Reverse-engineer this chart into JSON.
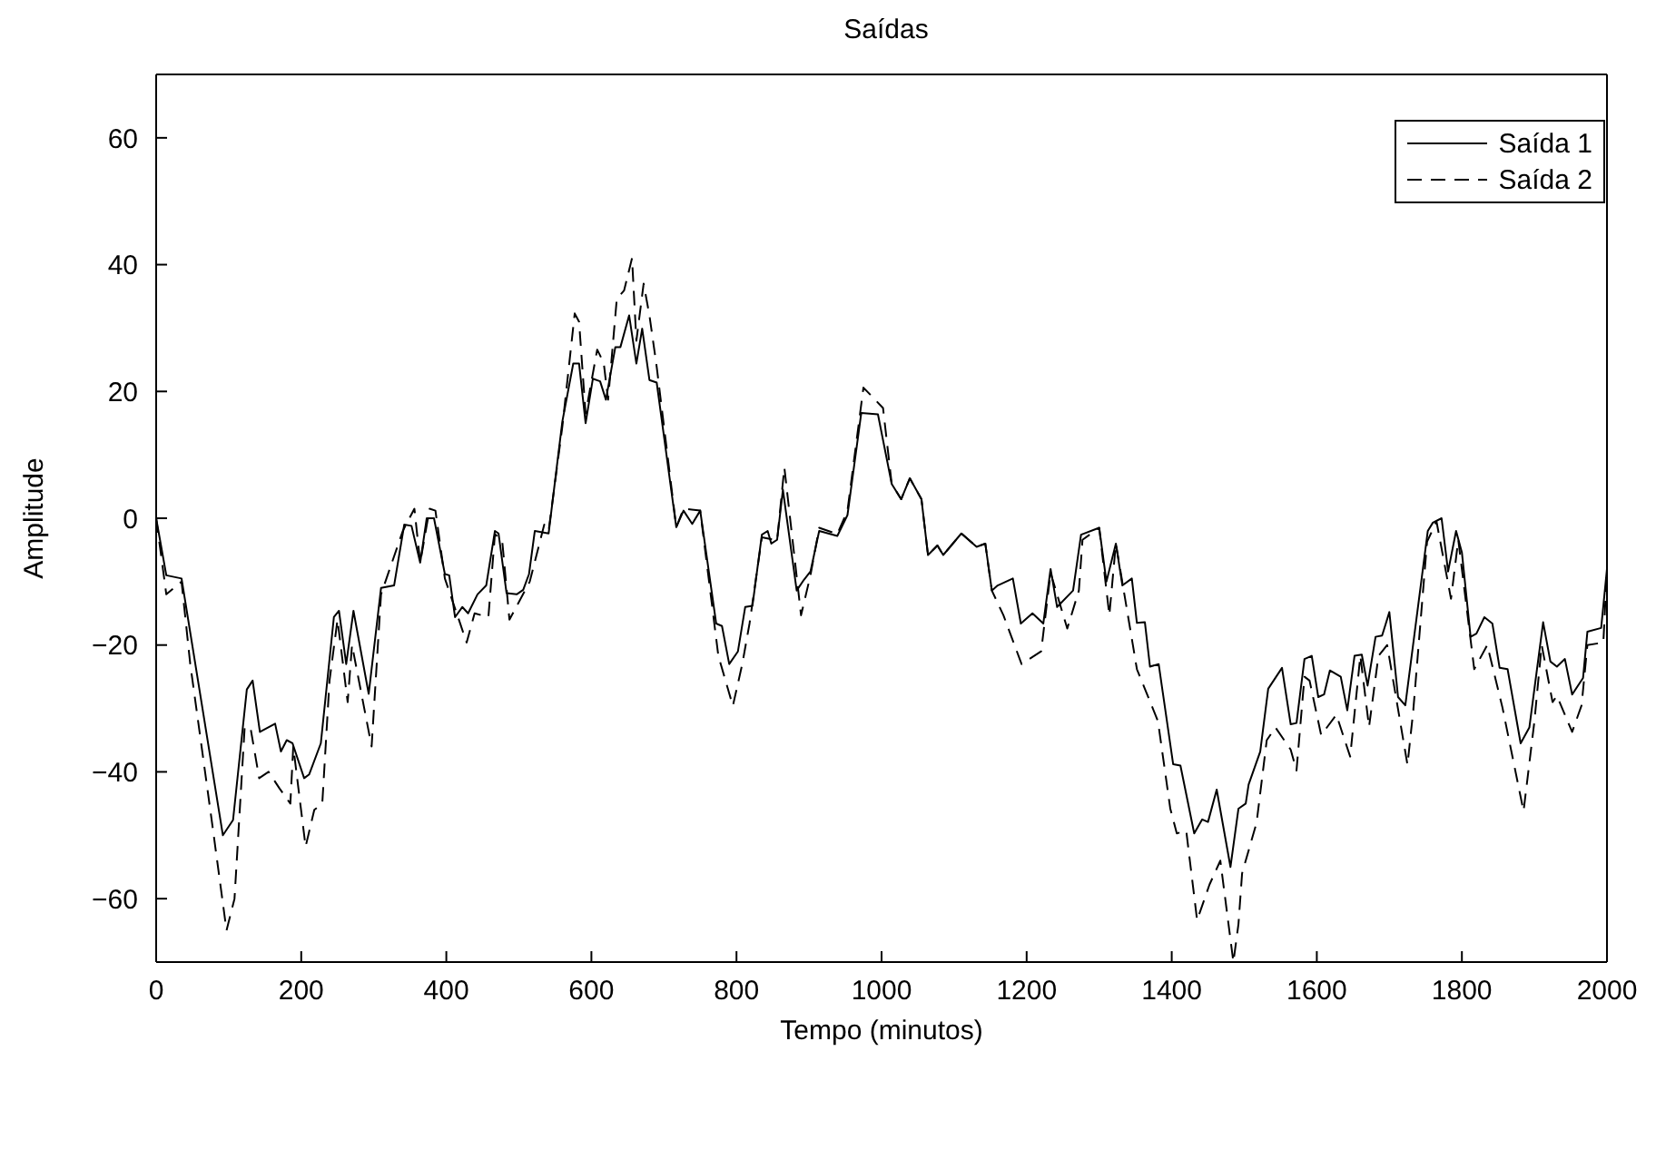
{
  "chart_data": {
    "type": "line",
    "title": "Saídas",
    "xlabel": "Tempo (minutos)",
    "ylabel": "Amplitude",
    "xlim": [
      0,
      2000
    ],
    "ylim": [
      -70,
      70
    ],
    "xticks": [
      0,
      200,
      400,
      600,
      800,
      1000,
      1200,
      1400,
      1600,
      1800,
      2000
    ],
    "yticks": [
      -60,
      -40,
      -20,
      0,
      20,
      40,
      60
    ],
    "grid": false,
    "legend": "top right",
    "marker": "none",
    "series": [
      {
        "name": "Saída 1",
        "color": "#000000",
        "line_style": "solid",
        "x": [
          0,
          14,
          35,
          92,
          106,
          125,
          133,
          143,
          164,
          172,
          180,
          188,
          204,
          211,
          227,
          245,
          252,
          262,
          272,
          293,
          310,
          328,
          342,
          352,
          364,
          373,
          383,
          398,
          404,
          412,
          422,
          430,
          443,
          455,
          467,
          472,
          483,
          497,
          506,
          514,
          522,
          541,
          560,
          575,
          583,
          592,
          602,
          612,
          620,
          633,
          640,
          652,
          662,
          670,
          680,
          690,
          717,
          727,
          739,
          750,
          772,
          780,
          790,
          802,
          812,
          822,
          835,
          843,
          848,
          856,
          864,
          883,
          893,
          902,
          914,
          939,
          953,
          972,
          995,
          1014,
          1027,
          1039,
          1055,
          1064,
          1077,
          1085,
          1110,
          1131,
          1143,
          1152,
          1160,
          1181,
          1192,
          1208,
          1223,
          1233,
          1242,
          1264,
          1275,
          1300,
          1310,
          1323,
          1332,
          1345,
          1352,
          1363,
          1370,
          1382,
          1402,
          1412,
          1431,
          1442,
          1450,
          1462,
          1481,
          1492,
          1502,
          1506,
          1522,
          1533,
          1552,
          1564,
          1572,
          1583,
          1593,
          1602,
          1610,
          1618,
          1633,
          1642,
          1652,
          1662,
          1670,
          1681,
          1690,
          1700,
          1712,
          1722,
          1753,
          1760,
          1772,
          1781,
          1792,
          1800,
          1812,
          1820,
          1831,
          1842,
          1852,
          1863,
          1881,
          1893,
          1912,
          1922,
          1931,
          1942,
          1952,
          1967,
          1973,
          1992,
          2000
        ],
        "values": [
          0,
          -9,
          -9.5,
          -50,
          -47.6,
          -27,
          -25.6,
          -33.7,
          -32.4,
          -36.8,
          -35,
          -35.5,
          -41,
          -40.4,
          -35.5,
          -15.6,
          -14.6,
          -23,
          -14.6,
          -27.7,
          -11,
          -10.6,
          -1,
          -1.2,
          -7,
          0,
          0,
          -8.8,
          -9,
          -15.6,
          -14,
          -15,
          -12,
          -10.6,
          -2,
          -2.4,
          -11.8,
          -12,
          -11.3,
          -8.8,
          -2,
          -2.4,
          15.3,
          24.4,
          24.4,
          15,
          22,
          21.6,
          18.7,
          27,
          27,
          32,
          24.4,
          29.9,
          21.8,
          21.4,
          -1.4,
          1.2,
          -0.9,
          1.2,
          -16.6,
          -17,
          -23,
          -21,
          -14,
          -13.8,
          -2.6,
          -2,
          -4,
          -3.4,
          4.5,
          -11.4,
          -9.7,
          -8.4,
          -2,
          -2.8,
          0.5,
          16.6,
          16.4,
          5.4,
          3,
          6.3,
          3,
          -5.8,
          -4.3,
          -5.8,
          -2.4,
          -4.5,
          -4,
          -11.4,
          -10.6,
          -9.5,
          -16.6,
          -15,
          -16.6,
          -8,
          -14,
          -11.4,
          -2.6,
          -1.5,
          -10,
          -4,
          -10.6,
          -9.5,
          -16.5,
          -16.4,
          -23.4,
          -23,
          -38.8,
          -39,
          -49.7,
          -47.5,
          -47.9,
          -42.8,
          -55,
          -45.8,
          -45,
          -42,
          -36.8,
          -26.9,
          -23.6,
          -32.5,
          -32.3,
          -22.2,
          -21.7,
          -28.2,
          -27.8,
          -24,
          -25,
          -30.3,
          -21.7,
          -21.5,
          -26.4,
          -18.7,
          -18.5,
          -14.8,
          -28.2,
          -29.5,
          -2,
          -0.7,
          0,
          -8.4,
          -2,
          -5.4,
          -18.7,
          -18.2,
          -15.6,
          -16.6,
          -23.6,
          -23.8,
          -35.5,
          -33,
          -16.4,
          -22.6,
          -23.4,
          -22.2,
          -27.8,
          -25.2,
          -17.9,
          -17.3,
          -8
        ]
      },
      {
        "name": "Saída 2",
        "color": "#000000",
        "line_style": "dashed",
        "x": [
          0,
          14,
          35,
          47,
          77,
          97,
          108,
          122,
          130,
          142,
          155,
          170,
          185,
          189,
          206,
          218,
          229,
          239,
          250,
          264,
          270,
          297,
          310,
          340,
          356,
          364,
          377,
          385,
          398,
          428,
          439,
          458,
          467,
          477,
          487,
          515,
          535,
          541,
          560,
          577,
          583,
          592,
          608,
          617,
          623,
          635,
          645,
          656,
          662,
          672,
          680,
          690,
          717,
          727,
          750,
          775,
          795,
          808,
          818,
          835,
          856,
          866,
          889,
          902,
          914,
          939,
          953,
          975,
          1002,
          1014,
          1027,
          1039,
          1055,
          1064,
          1077,
          1085,
          1110,
          1131,
          1143,
          1152,
          1168,
          1193,
          1220,
          1233,
          1256,
          1272,
          1277,
          1300,
          1314,
          1323,
          1352,
          1381,
          1398,
          1407,
          1420,
          1435,
          1452,
          1467,
          1485,
          1492,
          1497,
          1517,
          1531,
          1543,
          1564,
          1572,
          1583,
          1590,
          1606,
          1627,
          1646,
          1660,
          1672,
          1685,
          1697,
          1725,
          1733,
          1752,
          1765,
          1785,
          1795,
          1817,
          1835,
          1856,
          1885,
          1900,
          1910,
          1925,
          1931,
          1952,
          1965,
          1973,
          1995,
          2000
        ],
        "values": [
          0,
          -12,
          -10,
          -23,
          -48,
          -65,
          -60,
          -33,
          -33,
          -41,
          -40,
          -42.6,
          -45,
          -36,
          -51.8,
          -46,
          -45,
          -25.6,
          -16,
          -29,
          -20,
          -36,
          -12,
          -2,
          1.5,
          -7,
          1.5,
          1.2,
          -9.5,
          -19.6,
          -15,
          -15.6,
          -2.5,
          -3.5,
          -16,
          -10,
          -1,
          -2,
          14.5,
          32.3,
          31,
          16.5,
          26.6,
          24.5,
          18.7,
          34.6,
          35.9,
          41,
          28,
          37,
          32,
          23.9,
          -1.4,
          1.5,
          1.2,
          -21.7,
          -29.6,
          -23,
          -16.6,
          -3,
          -3.5,
          8,
          -15.3,
          -9,
          -1.5,
          -2.5,
          1.2,
          20.6,
          17.4,
          5.4,
          3,
          6.3,
          3,
          -5.8,
          -4.3,
          -5.8,
          -2.4,
          -4.5,
          -4,
          -11.4,
          -15.3,
          -23,
          -21,
          -8.6,
          -17.4,
          -11.4,
          -3.4,
          -1.5,
          -15.3,
          -4,
          -23.8,
          -32,
          -45.8,
          -49.7,
          -49.3,
          -63.4,
          -57.8,
          -54,
          -70,
          -64,
          -56,
          -48,
          -35,
          -33,
          -36.5,
          -39.8,
          -25,
          -25.6,
          -34.2,
          -31,
          -37.6,
          -21.7,
          -32.9,
          -21.7,
          -20,
          -38.9,
          -30.3,
          -3.7,
          -0.5,
          -12.7,
          -3.4,
          -23.8,
          -20,
          -29.9,
          -46.2,
          -32,
          -20,
          -29,
          -28,
          -33.7,
          -29.5,
          -20,
          -19.6,
          -8
        ]
      }
    ]
  }
}
